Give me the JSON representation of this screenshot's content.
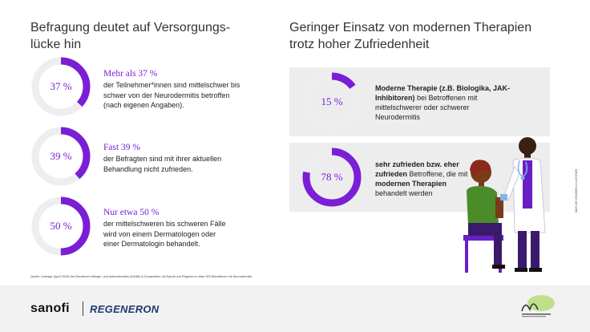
{
  "left_title": "Befragung deutet auf Versorgungs-\nlücke hin",
  "right_title": "Geringer Einsatz von modernen Therapien\ntrotz hoher Zufriedenheit",
  "colors": {
    "accent": "#7a1fd6",
    "ring_bg": "#eeeef0",
    "panel_bg": "#ededee"
  },
  "stats": [
    {
      "value": "37 %",
      "fraction": 0.37,
      "head": "Mehr als 37 %",
      "body": "der Teilnehmer*innen sind mittelschwer bis\nschwer von der Neurodermitis betroffen\n(nach eigenen Angaben)."
    },
    {
      "value": "39 %",
      "fraction": 0.39,
      "head": "Fast 39 %",
      "body": "der Befragten sind mit ihrer aktuellen\nBehandlung nicht zufrieden."
    },
    {
      "value": "50 %",
      "fraction": 0.5,
      "head": "Nur etwa 50 %",
      "body": "der mittelschweren bis schweren Fälle\nwird von einem Dermatologen oder\neiner Dermatologin behandelt."
    }
  ],
  "panels": [
    {
      "value": "15 %",
      "fraction": 0.15,
      "bold1": "Moderne Therapie (z.B. Biologika, JAK-Inhibitoren)",
      "text1": " bei Betroffenen mit mittelschwerer oder schwerer Neurodermitis"
    },
    {
      "value": "78 %",
      "fraction": 0.78,
      "bold1": "sehr zufrieden bzw. eher zufrieden",
      "text1": " Betroffene, die mit ",
      "bold2": "modernen Therapien",
      "text2": " behandelt werden"
    }
  ],
  "source": "Quelle: Umfrage (April 2025) des Deutschen Allergie- und Asthmabundes (DAAB) in Kooperation mit Sanofi und Regeneron unter 500 Betroffenen mit Neurodermitis",
  "footer": {
    "sanofi": "sanofi",
    "regeneron": "REGENERON"
  },
  "code": "MAT-DE-2502695-1.0-07/2025"
}
